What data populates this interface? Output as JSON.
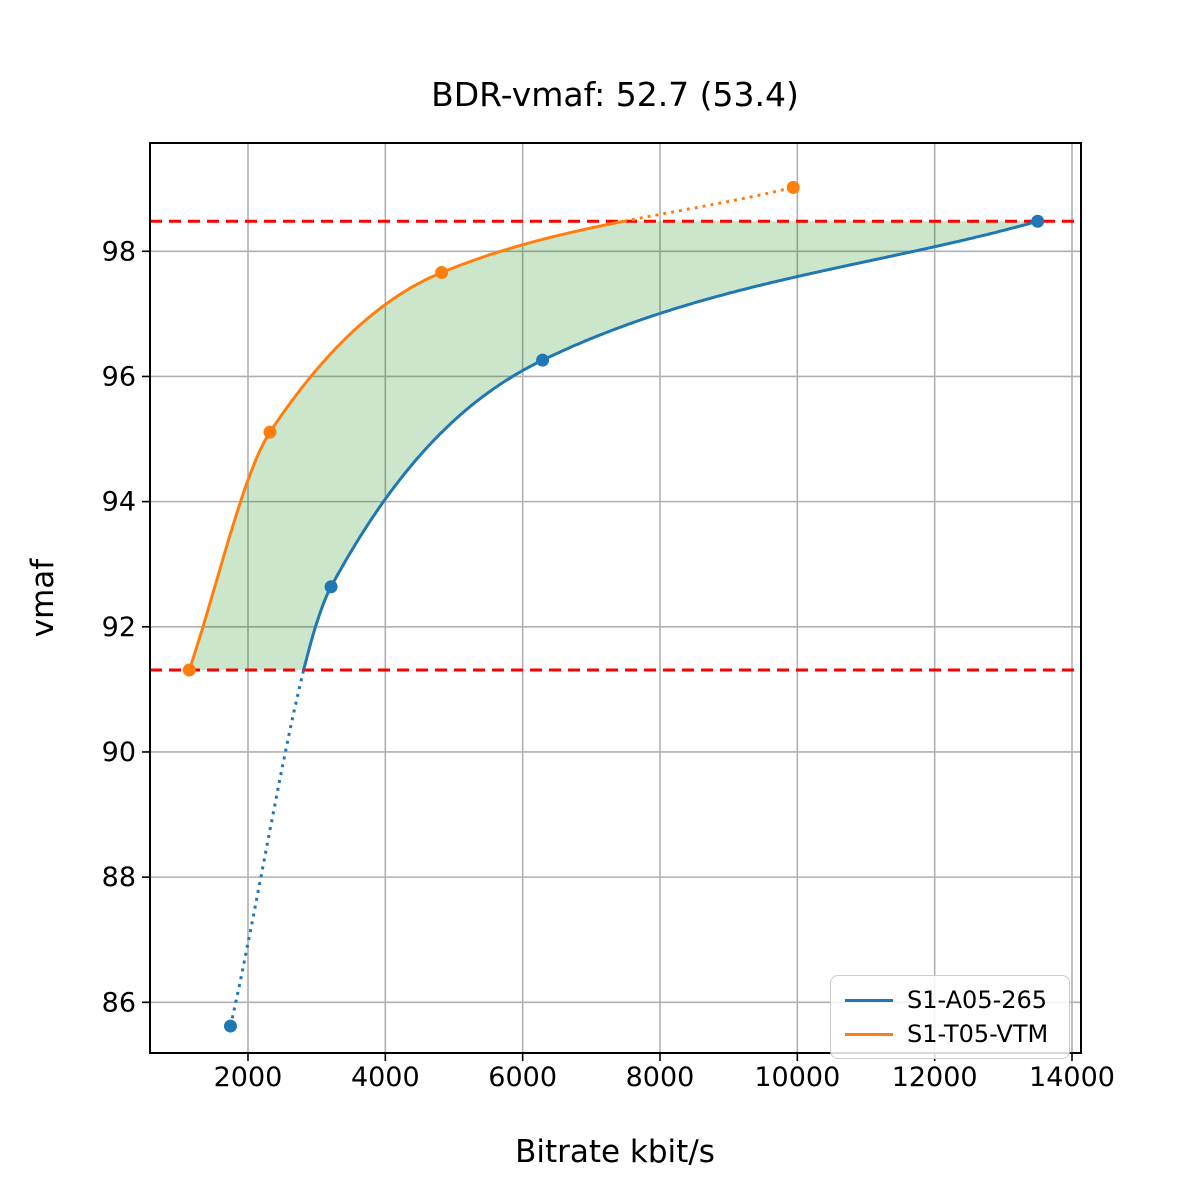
{
  "chart_data": {
    "type": "line",
    "title": "BDR-vmaf: 52.7 (53.4)",
    "xlabel": "Bitrate kbit/s",
    "ylabel": "vmaf",
    "xlim": [
      573,
      14131
    ],
    "ylim": [
      85.19,
      99.73
    ],
    "xticks": [
      2000,
      4000,
      6000,
      8000,
      10000,
      12000,
      14000
    ],
    "yticks": [
      86,
      88,
      90,
      92,
      94,
      96,
      98
    ],
    "grid": true,
    "interpolation": "pchip",
    "series": [
      {
        "name": "S1-A05-265",
        "color": "#1f77b4",
        "points": [
          [
            1745,
            85.62
          ],
          [
            3210,
            92.64
          ],
          [
            6290,
            96.26
          ],
          [
            13500,
            98.48
          ]
        ],
        "style_note": "solid inside band, dotted below lower bound"
      },
      {
        "name": "S1-T05-VTM",
        "color": "#ff7f0e",
        "points": [
          [
            1145,
            91.31
          ],
          [
            2320,
            95.11
          ],
          [
            4820,
            97.66
          ],
          [
            9940,
            99.02
          ]
        ],
        "style_note": "solid inside band, dotted above upper bound"
      }
    ],
    "band": {
      "lo": 91.31,
      "hi": 98.48,
      "line_color": "#ff0000",
      "line_style": "dashed",
      "fill_color": "rgba(0,128,0,0.2)"
    },
    "legend": {
      "position": "lower right"
    },
    "style": {
      "grid_color": "#b0b0b0",
      "spine_color": "#000000",
      "background": "#ffffff"
    }
  }
}
